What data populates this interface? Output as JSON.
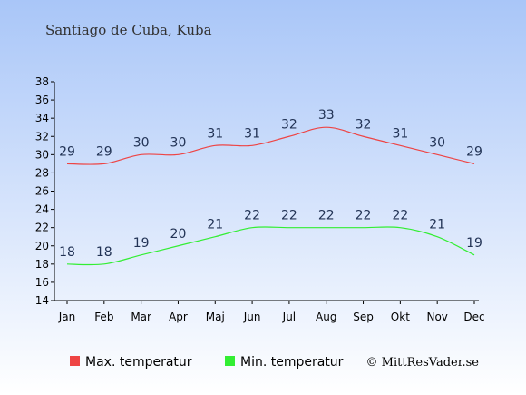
{
  "colors": {
    "max_series": "#ee4444",
    "min_series": "#33ee33",
    "bg_top": "#a9c6f8",
    "bg_bottom": "#ffffff"
  },
  "chart_data": {
    "type": "line",
    "title": "Santiago de Cuba, Kuba",
    "categories": [
      "Jan",
      "Feb",
      "Mar",
      "Apr",
      "Maj",
      "Jun",
      "Jul",
      "Aug",
      "Sep",
      "Okt",
      "Nov",
      "Dec"
    ],
    "series": [
      {
        "name": "Max. temperatur",
        "values": [
          29,
          29,
          30,
          30,
          31,
          31,
          32,
          33,
          32,
          31,
          30,
          29
        ]
      },
      {
        "name": "Min. temperatur",
        "values": [
          18,
          18,
          19,
          20,
          21,
          22,
          22,
          22,
          22,
          22,
          21,
          19
        ]
      }
    ],
    "ylim": [
      14,
      38
    ],
    "yticks": [
      14,
      16,
      18,
      20,
      22,
      24,
      26,
      28,
      30,
      32,
      34,
      36,
      38
    ],
    "grid": false,
    "legend_position": "bottom-left"
  },
  "credit": "© MittResVader.se"
}
